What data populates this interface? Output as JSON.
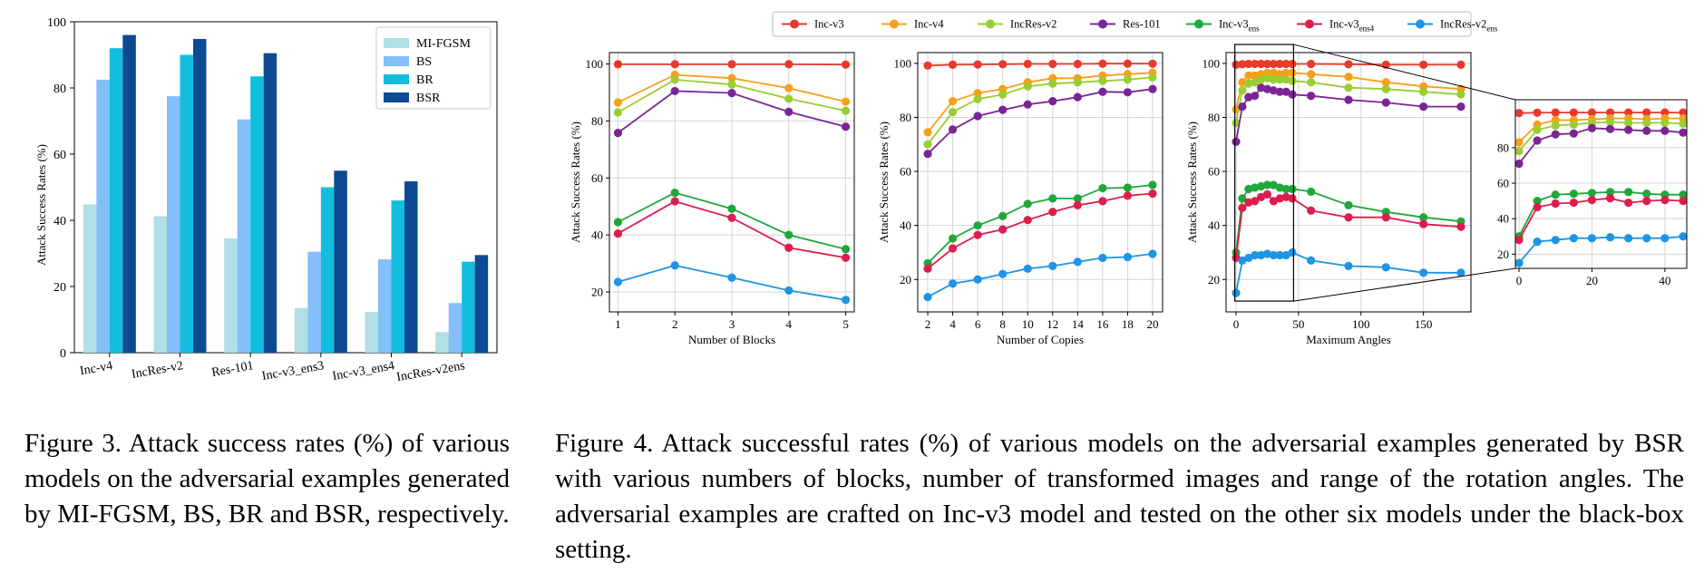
{
  "fig3": {
    "caption": "Figure 3.  Attack success rates (%) of various models on the adversarial examples generated by MI-FGSM, BS, BR and BSR, respectively.",
    "chart_data": {
      "type": "bar",
      "title": "",
      "xlabel": "",
      "ylabel": "Attack Success Rates (%)",
      "ylim": [
        0,
        100
      ],
      "yticks": [
        0,
        20,
        40,
        60,
        80,
        100
      ],
      "categories": [
        "Inc-v4",
        "IncRes-v2",
        "Res-101",
        "Inc-v3_ens3",
        "Inc-v3_ens4",
        "IncRes-v2ens"
      ],
      "series": [
        {
          "name": "MI-FGSM",
          "color": "#b0dfe5",
          "values": [
            44.8,
            41.2,
            34.5,
            13.5,
            12.3,
            6.2
          ]
        },
        {
          "name": "BS",
          "color": "#84bff9",
          "values": [
            82.5,
            77.5,
            70.5,
            30.5,
            28.2,
            15.0
          ]
        },
        {
          "name": "BR",
          "color": "#12bdde",
          "values": [
            92.0,
            90.0,
            83.5,
            50.0,
            46.0,
            27.5
          ]
        },
        {
          "name": "BSR",
          "color": "#0c4b94",
          "values": [
            96.0,
            94.8,
            90.5,
            55.0,
            51.8,
            29.5
          ]
        }
      ],
      "legend_position": "top-right"
    }
  },
  "fig4": {
    "caption": "Figure 4.  Attack successful rates (%) of various models on the adversarial examples generated by BSR with various numbers of blocks, number of transformed images and range of the rotation angles. The adversarial examples are crafted on Inc-v3 model and tested on the other six models under the black-box setting.",
    "legend": [
      {
        "base": "Inc-v3",
        "sub": "",
        "color": "#e8392c"
      },
      {
        "base": "Inc-v4",
        "sub": "",
        "color": "#f6a01a"
      },
      {
        "base": "IncRes-v2",
        "sub": "",
        "color": "#9acd32"
      },
      {
        "base": "Res-101",
        "sub": "",
        "color": "#7a2596"
      },
      {
        "base": "Inc-v3",
        "sub": "ens",
        "color": "#1fa83a"
      },
      {
        "base": "Inc-v3",
        "sub": "ens4",
        "color": "#dd1d4e"
      },
      {
        "base": "IncRes-v2",
        "sub": "ens",
        "color": "#1e94e5"
      }
    ],
    "chart_data": [
      {
        "type": "line",
        "xlabel": "Number of Blocks",
        "ylabel": "Attack Success Rates (%)",
        "x": [
          1,
          2,
          3,
          4,
          5
        ],
        "xticks": [
          1,
          2,
          3,
          4,
          5
        ],
        "xlim": [
          0.85,
          5.15
        ],
        "ylim": [
          13,
          104
        ],
        "yticks": [
          20,
          40,
          60,
          80,
          100
        ],
        "series": [
          {
            "name": "Inc-v3",
            "values": [
              99.9,
              99.9,
              99.9,
              99.9,
              99.8
            ]
          },
          {
            "name": "Inc-v4",
            "values": [
              86.5,
              96.2,
              95.0,
              91.5,
              86.8
            ]
          },
          {
            "name": "IncRes-v2",
            "values": [
              83.0,
              94.5,
              92.8,
              87.8,
              83.6
            ]
          },
          {
            "name": "Res-101",
            "values": [
              75.8,
              90.5,
              89.8,
              83.2,
              78.0
            ]
          },
          {
            "name": "Inc-v3ens",
            "values": [
              44.5,
              54.8,
              49.2,
              40.0,
              35.0
            ]
          },
          {
            "name": "Inc-v3ens4",
            "values": [
              40.5,
              51.8,
              46.0,
              35.5,
              32.0
            ]
          },
          {
            "name": "IncRes-v2ens",
            "values": [
              23.5,
              29.3,
              25.0,
              20.5,
              17.2
            ]
          }
        ]
      },
      {
        "type": "line",
        "xlabel": "Number of Copies",
        "ylabel": "Attack Success Rates (%)",
        "x": [
          2,
          4,
          6,
          8,
          10,
          12,
          14,
          16,
          18,
          20
        ],
        "xticks": [
          2,
          4,
          6,
          8,
          10,
          12,
          14,
          16,
          18,
          20
        ],
        "xlim": [
          1.2,
          20.8
        ],
        "ylim": [
          8,
          104
        ],
        "yticks": [
          20,
          40,
          60,
          80,
          100
        ],
        "series": [
          {
            "name": "Inc-v3",
            "values": [
              99.2,
              99.5,
              99.6,
              99.7,
              99.8,
              99.8,
              99.8,
              99.9,
              99.9,
              99.9
            ]
          },
          {
            "name": "Inc-v4",
            "values": [
              74.5,
              86.0,
              89.0,
              90.5,
              93.0,
              94.5,
              94.5,
              95.5,
              96.0,
              96.5
            ]
          },
          {
            "name": "IncRes-v2",
            "values": [
              70.0,
              82.0,
              86.8,
              88.5,
              91.5,
              92.5,
              93.0,
              93.5,
              94.0,
              94.8
            ]
          },
          {
            "name": "Res-101",
            "values": [
              66.5,
              75.5,
              80.5,
              82.8,
              84.8,
              86.0,
              87.5,
              89.5,
              89.3,
              90.5
            ]
          },
          {
            "name": "Inc-v3ens",
            "values": [
              26.0,
              35.2,
              40.0,
              43.5,
              48.0,
              50.0,
              50.0,
              53.8,
              54.0,
              55.0
            ]
          },
          {
            "name": "Inc-v3ens4",
            "values": [
              24.0,
              31.5,
              36.5,
              38.5,
              42.0,
              45.0,
              47.5,
              49.0,
              51.0,
              51.8
            ]
          },
          {
            "name": "IncRes-v2ens",
            "values": [
              13.5,
              18.5,
              20.0,
              22.0,
              24.0,
              25.0,
              26.5,
              28.0,
              28.3,
              29.5
            ]
          }
        ]
      },
      {
        "type": "line",
        "xlabel": "Maximum Angles",
        "ylabel": "Attack Success Rates (%)",
        "x": [
          0,
          5,
          10,
          15,
          20,
          25,
          30,
          35,
          40,
          45,
          60,
          90,
          120,
          150,
          180
        ],
        "xticks": [
          0,
          50,
          100,
          150
        ],
        "xlim": [
          -8,
          188
        ],
        "ylim": [
          8,
          104
        ],
        "yticks": [
          20,
          40,
          60,
          80,
          100
        ],
        "zoom_inset": {
          "xlim": [
            -1,
            46
          ],
          "ylim": [
            12,
            107
          ],
          "xticks": [
            0,
            20,
            40
          ],
          "yticks": [
            20,
            40,
            60,
            80
          ]
        },
        "series": [
          {
            "name": "Inc-v3",
            "values": [
              99.5,
              99.7,
              99.8,
              99.8,
              99.8,
              99.8,
              99.8,
              99.8,
              99.8,
              99.8,
              99.8,
              99.7,
              99.5,
              99.5,
              99.5
            ]
          },
          {
            "name": "Inc-v4",
            "values": [
              83.0,
              93.0,
              95.5,
              95.5,
              96.0,
              96.5,
              96.5,
              96.0,
              96.5,
              96.5,
              96.0,
              95.0,
              93.0,
              91.5,
              90.5
            ]
          },
          {
            "name": "IncRes-v2",
            "values": [
              78.0,
              90.0,
              92.5,
              93.0,
              94.0,
              94.5,
              94.0,
              94.0,
              94.0,
              93.5,
              93.0,
              91.0,
              90.5,
              89.5,
              88.5
            ]
          },
          {
            "name": "Res-101",
            "values": [
              71.0,
              84.0,
              87.5,
              88.0,
              91.0,
              90.5,
              90.0,
              89.5,
              89.5,
              88.5,
              88.0,
              86.5,
              85.5,
              84.0,
              84.0
            ]
          },
          {
            "name": "Inc-v3ens",
            "values": [
              30.0,
              50.0,
              53.5,
              54.0,
              54.5,
              55.0,
              55.0,
              54.0,
              53.5,
              53.5,
              52.5,
              47.5,
              45.0,
              43.0,
              41.5
            ]
          },
          {
            "name": "Inc-v3ens4",
            "values": [
              28.0,
              46.5,
              48.5,
              49.0,
              50.5,
              51.5,
              49.0,
              50.0,
              50.5,
              50.0,
              45.5,
              43.0,
              43.0,
              40.5,
              39.5
            ]
          },
          {
            "name": "IncRes-v2ens",
            "values": [
              15.0,
              27.0,
              28.0,
              29.0,
              29.0,
              29.5,
              29.0,
              29.0,
              29.0,
              30.0,
              27.0,
              25.0,
              24.5,
              22.5,
              22.5
            ]
          }
        ]
      }
    ]
  }
}
